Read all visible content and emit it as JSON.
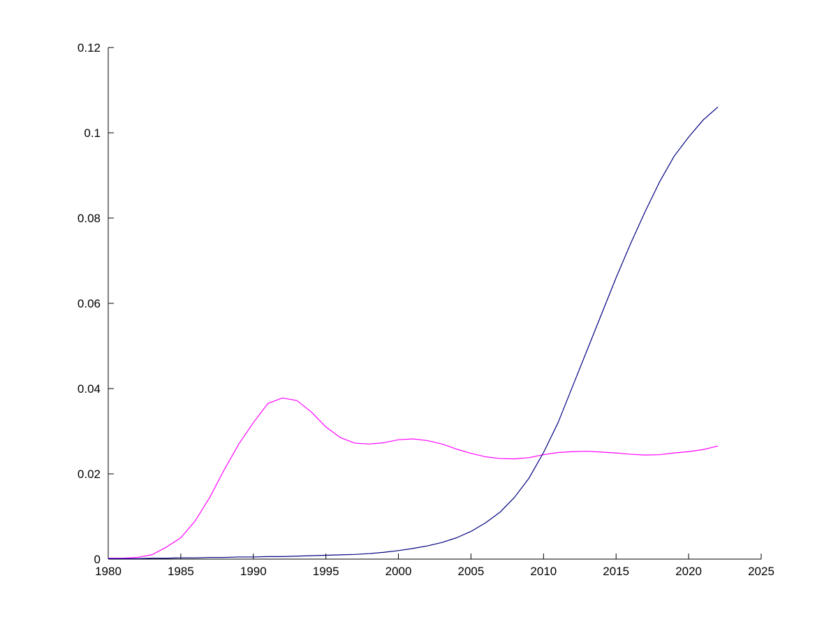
{
  "chart_data": {
    "type": "line",
    "title": "",
    "xlabel": "",
    "ylabel": "",
    "grid": false,
    "legend": null,
    "background": "#FFFFFF",
    "axis_color": "#000000",
    "xlim": [
      1980,
      2025
    ],
    "ylim": [
      0,
      0.12
    ],
    "xticks": [
      1980,
      1985,
      1990,
      1995,
      2000,
      2005,
      2010,
      2015,
      2020,
      2025
    ],
    "xtick_labels": [
      "1980",
      "1985",
      "1990",
      "1995",
      "2000",
      "2005",
      "2010",
      "2015",
      "2020",
      "2025"
    ],
    "yticks": [
      0,
      0.02,
      0.04,
      0.06,
      0.08,
      0.1,
      0.12
    ],
    "ytick_labels": [
      "0",
      "0.02",
      "0.04",
      "0.06",
      "0.08",
      "0.1",
      "0.12"
    ],
    "x": [
      1980,
      1981,
      1982,
      1983,
      1984,
      1985,
      1986,
      1987,
      1988,
      1989,
      1990,
      1991,
      1992,
      1993,
      1994,
      1995,
      1996,
      1997,
      1998,
      1999,
      2000,
      2001,
      2002,
      2003,
      2004,
      2005,
      2006,
      2007,
      2008,
      2009,
      2010,
      2011,
      2012,
      2013,
      2014,
      2015,
      2016,
      2017,
      2018,
      2019,
      2020,
      2021,
      2022
    ],
    "series": [
      {
        "name": "magenta-series",
        "color": "#FF00FF",
        "values": [
          0.0002,
          0.0002,
          0.0004,
          0.001,
          0.0028,
          0.005,
          0.009,
          0.0145,
          0.021,
          0.027,
          0.032,
          0.0365,
          0.0378,
          0.0372,
          0.0345,
          0.031,
          0.0285,
          0.0272,
          0.027,
          0.0273,
          0.028,
          0.0282,
          0.0278,
          0.027,
          0.0258,
          0.0248,
          0.024,
          0.0236,
          0.0235,
          0.0238,
          0.0245,
          0.025,
          0.0252,
          0.0253,
          0.0251,
          0.0249,
          0.0246,
          0.0244,
          0.0245,
          0.0249,
          0.0252,
          0.0257,
          0.0265
        ]
      },
      {
        "name": "blue-series",
        "color": "#000080",
        "values": [
          0.0001,
          0.0001,
          0.0001,
          0.0002,
          0.0002,
          0.0003,
          0.0003,
          0.0004,
          0.0004,
          0.0005,
          0.0005,
          0.0006,
          0.0006,
          0.0007,
          0.0008,
          0.0009,
          0.001,
          0.0011,
          0.0013,
          0.0016,
          0.002,
          0.0025,
          0.0031,
          0.0039,
          0.005,
          0.0065,
          0.0085,
          0.011,
          0.0145,
          0.019,
          0.025,
          0.032,
          0.0405,
          0.049,
          0.0575,
          0.066,
          0.074,
          0.0815,
          0.0885,
          0.0945,
          0.099,
          0.103,
          0.106
        ]
      }
    ]
  }
}
